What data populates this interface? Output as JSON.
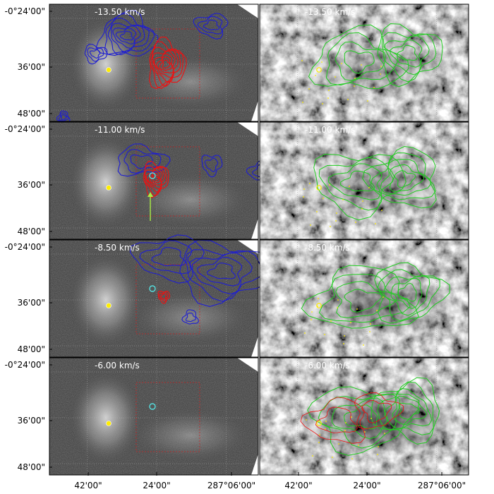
{
  "figure": {
    "panels": [
      {
        "velocity": "-13.50 km/s"
      },
      {
        "velocity": "-11.00 km/s"
      },
      {
        "velocity": "-8.50 km/s"
      },
      {
        "velocity": "-6.00 km/s"
      }
    ],
    "y_ticks": [
      "-0°24'00\"",
      "36'00\"",
      "48'00\""
    ],
    "x_ticks": [
      "42'00\"",
      "24'00\"",
      "287°06'00\""
    ]
  },
  "colors": {
    "blue_contour": "#1f1fd0",
    "red_contour": "#ee1111",
    "green_contour": "#22cc22",
    "yellow_marker": "#ffee00",
    "cyan_marker": "#55e0e0",
    "red_box": "#cc2222",
    "arrow": "#aaee44"
  }
}
